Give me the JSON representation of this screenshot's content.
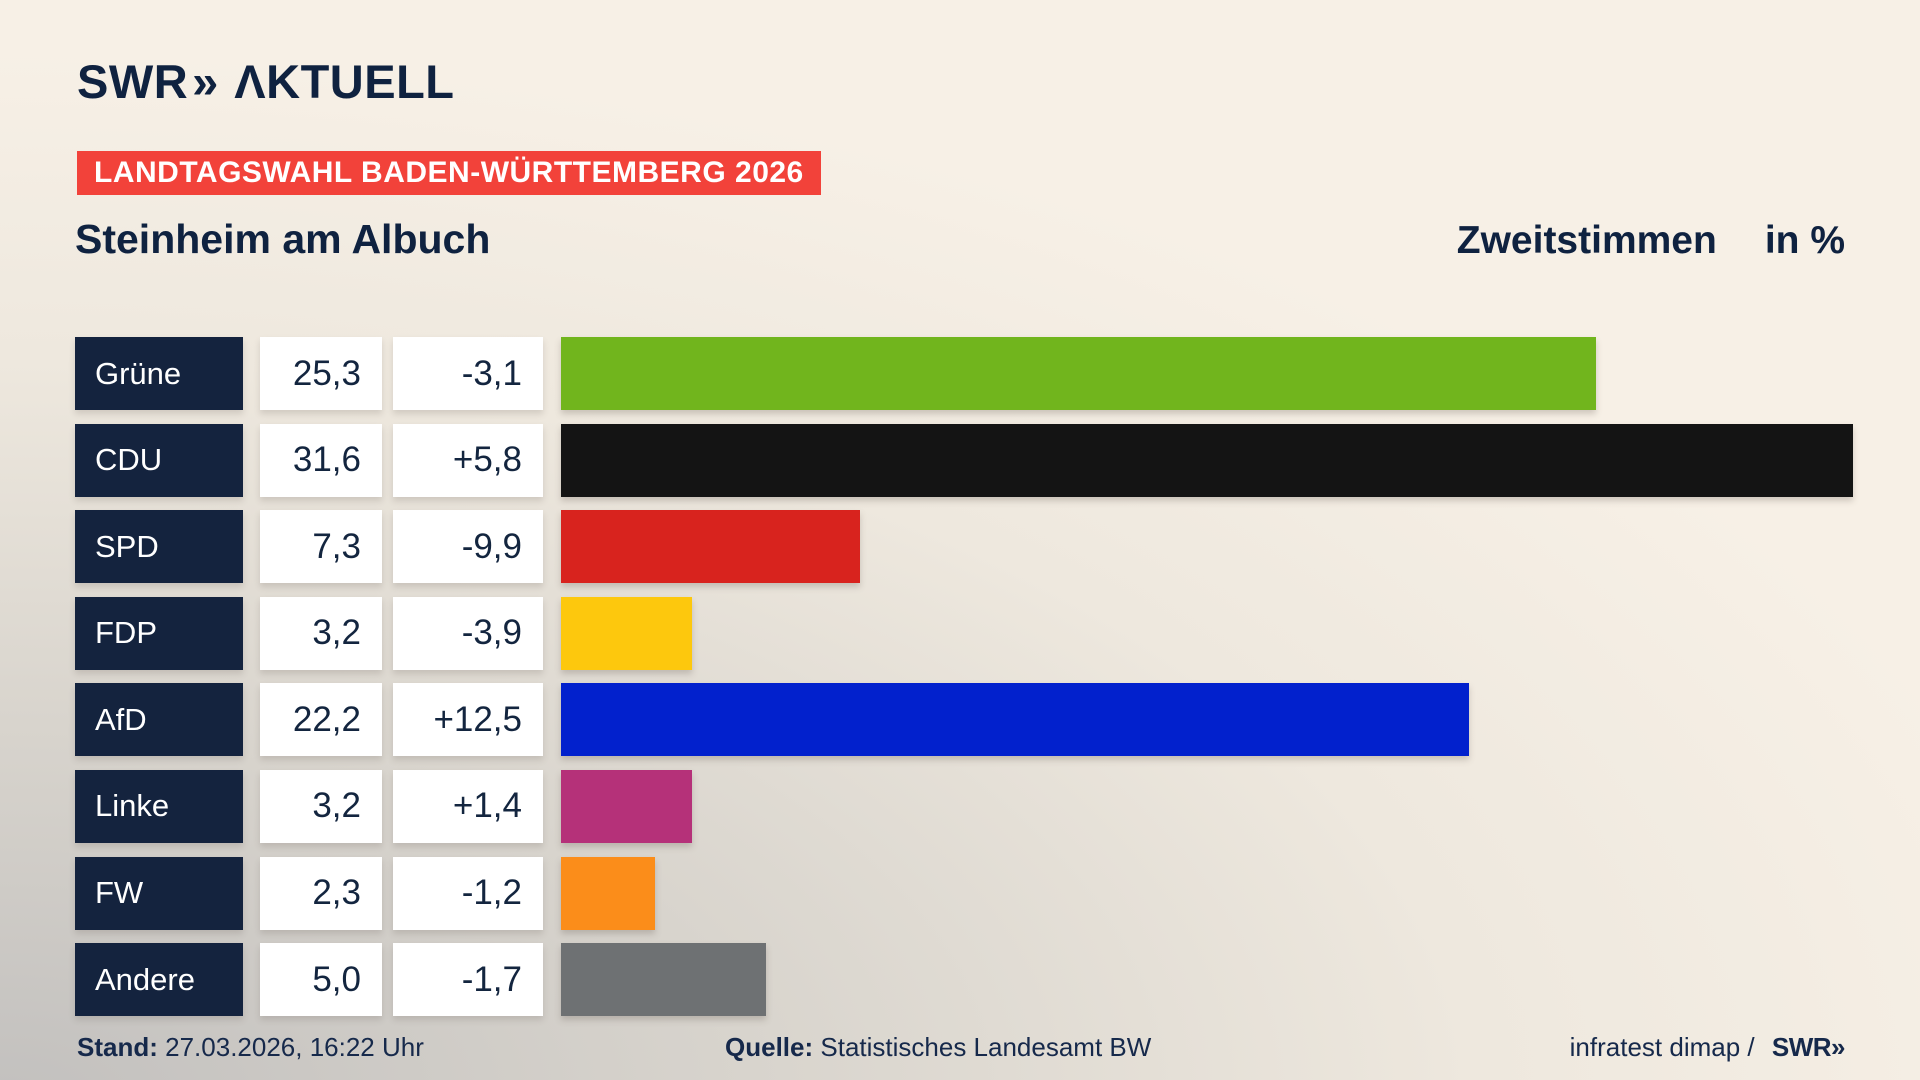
{
  "header": {
    "logo": {
      "swr": "SWR",
      "chevrons": "»",
      "aktuell": "ΛKTUELL"
    },
    "banner": "LANDTAGSWAHL BADEN-WÜRTTEMBERG 2026",
    "title": "Steinheim am Albuch",
    "measure_label": "Zweitstimmen",
    "unit_label": "in %"
  },
  "rows": [
    {
      "party": "Grüne",
      "value": "25,3",
      "change": "-3,1",
      "pct": 25.3,
      "color": "#71b51d"
    },
    {
      "party": "CDU",
      "value": "31,6",
      "change": "+5,8",
      "pct": 31.6,
      "color": "#141414"
    },
    {
      "party": "SPD",
      "value": "7,3",
      "change": "-9,9",
      "pct": 7.3,
      "color": "#d8231e"
    },
    {
      "party": "FDP",
      "value": "3,2",
      "change": "-3,9",
      "pct": 3.2,
      "color": "#fdc80d"
    },
    {
      "party": "AfD",
      "value": "22,2",
      "change": "+12,5",
      "pct": 22.2,
      "color": "#0221cd"
    },
    {
      "party": "Linke",
      "value": "3,2",
      "change": "+1,4",
      "pct": 3.2,
      "color": "#b53179"
    },
    {
      "party": "FW",
      "value": "2,3",
      "change": "-1,2",
      "pct": 2.3,
      "color": "#fb8d1a"
    },
    {
      "party": "Andere",
      "value": "5,0",
      "change": "-1,7",
      "pct": 5.0,
      "color": "#6e7173"
    }
  ],
  "chart_data": {
    "type": "bar",
    "orientation": "horizontal",
    "title": "Steinheim am Albuch",
    "subtitle": "Zweitstimmen in %",
    "categories": [
      "Grüne",
      "CDU",
      "SPD",
      "FDP",
      "AfD",
      "Linke",
      "FW",
      "Andere"
    ],
    "series": [
      {
        "name": "Zweitstimmen (%)",
        "values": [
          25.3,
          31.6,
          7.3,
          3.2,
          22.2,
          3.2,
          2.3,
          5.0
        ]
      },
      {
        "name": "Veränderung (Prozentpunkte)",
        "values": [
          -3.1,
          5.8,
          -9.9,
          -3.9,
          12.5,
          1.4,
          -1.2,
          -1.7
        ]
      }
    ],
    "bar_colors": [
      "#71b51d",
      "#141414",
      "#d8231e",
      "#fdc80d",
      "#0221cd",
      "#b53179",
      "#fb8d1a",
      "#6e7173"
    ],
    "xlim": [
      0,
      33
    ],
    "legend": "none",
    "grid": false
  },
  "footer": {
    "stand_label": "Stand:",
    "stand_value": "27.03.2026, 16:22 Uhr",
    "source_label": "Quelle:",
    "source_value": "Statistisches Landesamt BW",
    "credit_text": "infratest dimap /",
    "credit_logo": "SWR»"
  },
  "colors": {
    "background_top": "#f7f0e6",
    "background_shadow": "#c2c0be",
    "navy": "#13253f",
    "label_box": "#14233e",
    "banner_red": "#f2423a",
    "box_white": "#ffffff"
  }
}
